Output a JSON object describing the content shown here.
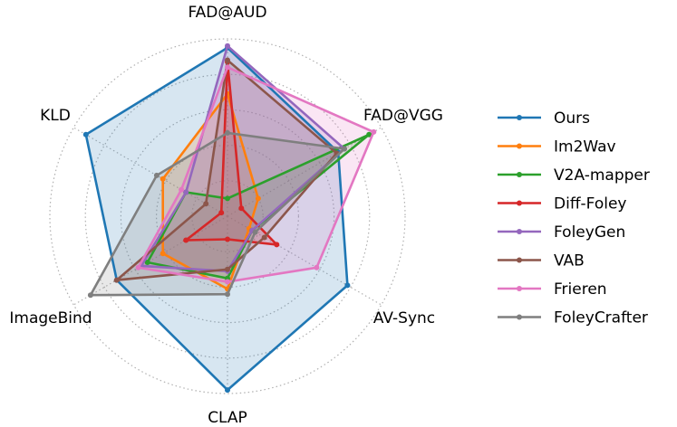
{
  "chart_data": {
    "type": "radar",
    "axes": [
      "FAD@AUD",
      "FAD@VGG",
      "AV-Sync",
      "CLAP",
      "ImageBind",
      "KLD"
    ],
    "rlim": [
      0,
      1
    ],
    "grid": true,
    "legend_position": "right",
    "series": [
      {
        "name": "Ours",
        "color": "#1f77b4",
        "values": [
          0.95,
          0.72,
          0.78,
          0.98,
          0.72,
          0.92
        ]
      },
      {
        "name": "Im2Wav",
        "color": "#ff7f0e",
        "values": [
          0.69,
          0.2,
          0.14,
          0.41,
          0.42,
          0.42
        ]
      },
      {
        "name": "V2A-mapper",
        "color": "#2ca02c",
        "values": [
          0.1,
          0.92,
          0.16,
          0.35,
          0.52,
          0.27
        ]
      },
      {
        "name": "Diff-Foley",
        "color": "#d62728",
        "values": [
          0.87,
          0.09,
          0.32,
          0.13,
          0.27,
          0.04
        ]
      },
      {
        "name": "FoleyGen",
        "color": "#9467bd",
        "values": [
          0.96,
          0.76,
          0.16,
          0.31,
          0.56,
          0.27
        ]
      },
      {
        "name": "VAB",
        "color": "#8c564b",
        "values": [
          0.88,
          0.71,
          0.24,
          0.3,
          0.72,
          0.14
        ]
      },
      {
        "name": "Frieren",
        "color": "#e377c2",
        "values": [
          0.84,
          0.95,
          0.58,
          0.37,
          0.58,
          0.3
        ]
      },
      {
        "name": "FoleyCrafter",
        "color": "#7f7f7f",
        "values": [
          0.47,
          0.76,
          0.18,
          0.44,
          0.89,
          0.46
        ]
      }
    ]
  }
}
